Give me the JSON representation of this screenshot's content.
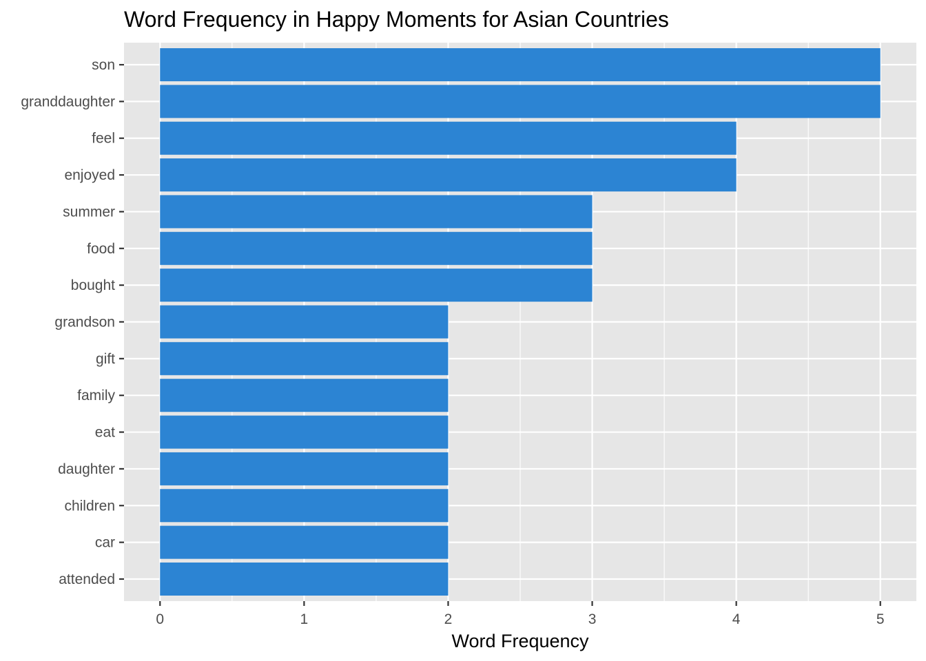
{
  "chart_data": {
    "type": "bar",
    "orientation": "horizontal",
    "title": "Word Frequency in Happy Moments for Asian Countries",
    "xlabel": "Word Frequency",
    "ylabel": "",
    "categories": [
      "son",
      "granddaughter",
      "feel",
      "enjoyed",
      "summer",
      "food",
      "bought",
      "grandson",
      "gift",
      "family",
      "eat",
      "daughter",
      "children",
      "car",
      "attended"
    ],
    "values": [
      5,
      5,
      4,
      4,
      3,
      3,
      3,
      2,
      2,
      2,
      2,
      2,
      2,
      2,
      2
    ],
    "xlim": [
      -0.25,
      5.25
    ],
    "xticks": [
      "0",
      "1",
      "2",
      "3",
      "4",
      "5"
    ],
    "grid": true,
    "legend": "none",
    "colors": {
      "bar": "#2c84d3",
      "panel": "#e6e6e6",
      "grid": "#ffffff"
    }
  }
}
